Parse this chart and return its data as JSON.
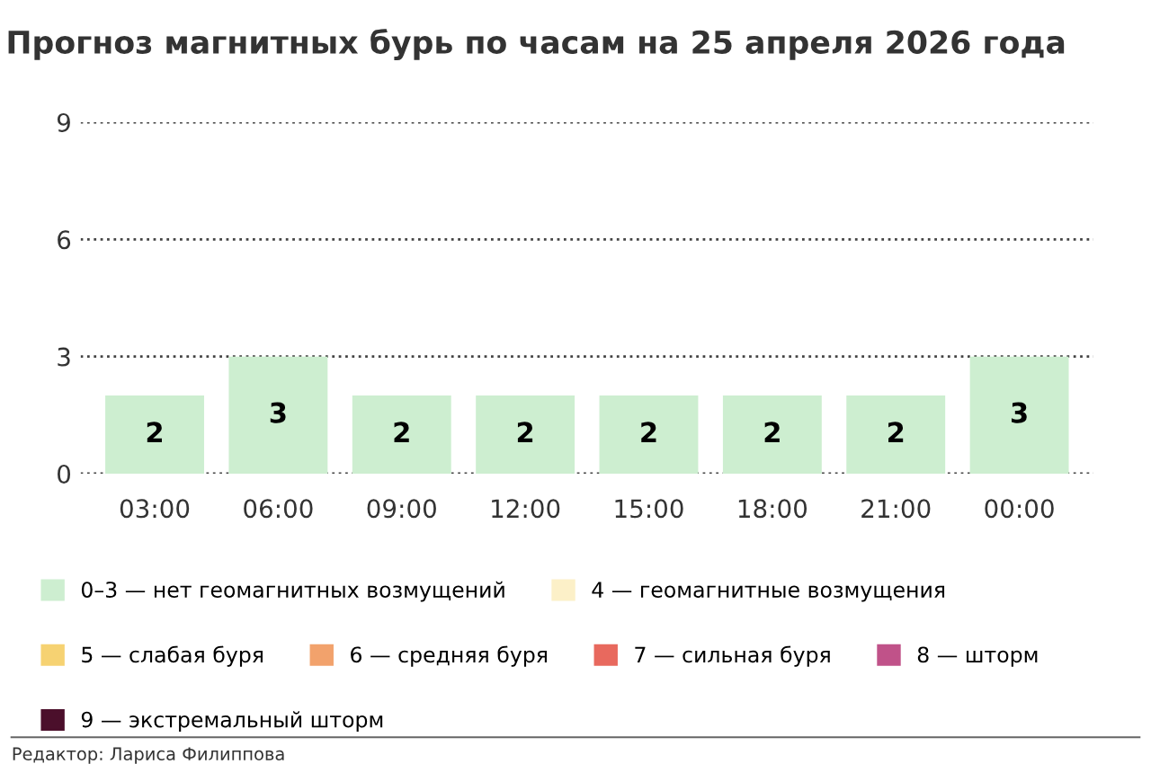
{
  "chart_data": {
    "type": "bar",
    "title": "Прогноз магнитных бурь по часам на 25 апреля 2026 года",
    "categories": [
      "03:00",
      "06:00",
      "09:00",
      "12:00",
      "15:00",
      "18:00",
      "21:00",
      "00:00"
    ],
    "series": [
      {
        "name": "0–3 — нет геомагнитных возмущений",
        "color": "#cdeed0",
        "values": [
          2,
          3,
          2,
          2,
          2,
          2,
          2,
          3
        ]
      },
      {
        "name": "4 — геомагнитные возмущения",
        "color": "#fcf0c8",
        "values": [
          null,
          null,
          null,
          null,
          null,
          null,
          null,
          null
        ]
      },
      {
        "name": "5 — слабая буря",
        "color": "#f6d272",
        "values": [
          null,
          null,
          null,
          null,
          null,
          null,
          null,
          null
        ]
      },
      {
        "name": "6 — средняя буря",
        "color": "#f2a26c",
        "values": [
          null,
          null,
          null,
          null,
          null,
          null,
          null,
          null
        ]
      },
      {
        "name": "7 — сильная буря",
        "color": "#e8695e",
        "values": [
          null,
          null,
          null,
          null,
          null,
          null,
          null,
          null
        ]
      },
      {
        "name": "8 — шторм",
        "color": "#c05289",
        "values": [
          null,
          null,
          null,
          null,
          null,
          null,
          null,
          null
        ]
      },
      {
        "name": "9 — экстремальный шторм",
        "color": "#4b0f2b",
        "values": [
          null,
          null,
          null,
          null,
          null,
          null,
          null,
          null
        ]
      }
    ],
    "ylim": [
      0,
      9
    ],
    "yticks": [
      0,
      3,
      6,
      9
    ],
    "grid": "y",
    "data_labels": true,
    "legend": "bottom",
    "annotations": [
      "Редактор: Лариса Филиппова"
    ]
  }
}
